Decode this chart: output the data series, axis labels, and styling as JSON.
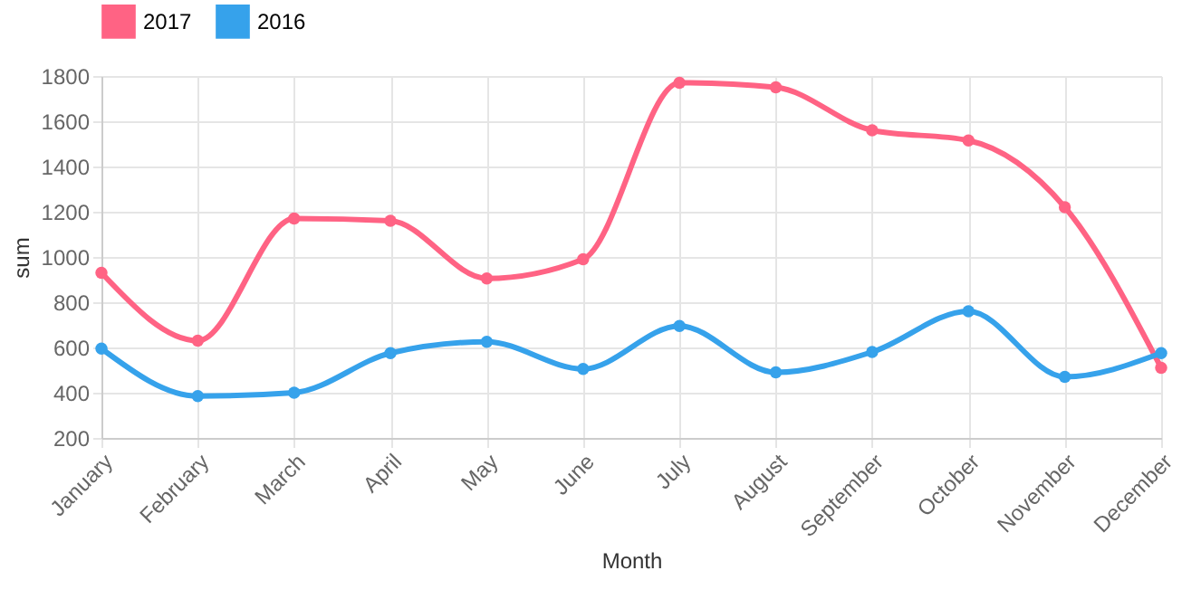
{
  "chart_data": {
    "type": "line",
    "xlabel": "Month",
    "ylabel": "sum",
    "categories": [
      "January",
      "February",
      "March",
      "April",
      "May",
      "June",
      "July",
      "August",
      "September",
      "October",
      "November",
      "December"
    ],
    "series": [
      {
        "name": "2017",
        "color": "#ff6384",
        "values": [
          930,
          630,
          1170,
          1160,
          905,
          990,
          1770,
          1750,
          1560,
          1515,
          1220,
          510
        ]
      },
      {
        "name": "2016",
        "color": "#36a2eb",
        "values": [
          595,
          385,
          400,
          575,
          625,
          505,
          695,
          490,
          580,
          760,
          470,
          575
        ]
      }
    ],
    "ylim": [
      200,
      1800
    ],
    "yticks": [
      200,
      400,
      600,
      800,
      1000,
      1200,
      1400,
      1600,
      1800
    ],
    "grid": true,
    "legend": "top",
    "marker": "circle",
    "line_style": "solid"
  }
}
